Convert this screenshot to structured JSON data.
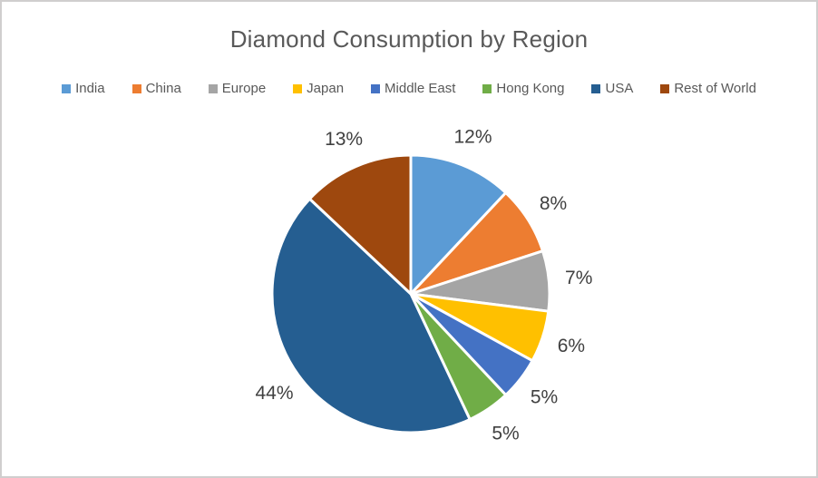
{
  "window": {
    "background_color": "#FFFFFF",
    "border_color": "#D0CECE"
  },
  "chart_data": {
    "type": "pie",
    "title": "Diamond Consumption by Region",
    "categories": [
      "India",
      "China",
      "Europe",
      "Japan",
      "Middle East",
      "Hong Kong",
      "USA",
      "Rest of World"
    ],
    "values": [
      12,
      8,
      7,
      6,
      5,
      5,
      44,
      13
    ],
    "data_labels": [
      "12%",
      "8%",
      "7%",
      "6%",
      "5%",
      "5%",
      "44%",
      "13%"
    ],
    "colors": [
      "#5B9BD5",
      "#ED7D31",
      "#A5A5A5",
      "#FFC000",
      "#4472C4",
      "#70AD47",
      "#255E91",
      "#9E480E"
    ],
    "total": 100,
    "start_angle_deg": 0,
    "direction": "clockwise",
    "legend_position": "top",
    "slice_separator_color": "#FFFFFF",
    "title_color": "#595959",
    "legend_text_color": "#595959",
    "label_text_color": "#404040",
    "data_labels_position": "outside-end",
    "grid": false
  }
}
